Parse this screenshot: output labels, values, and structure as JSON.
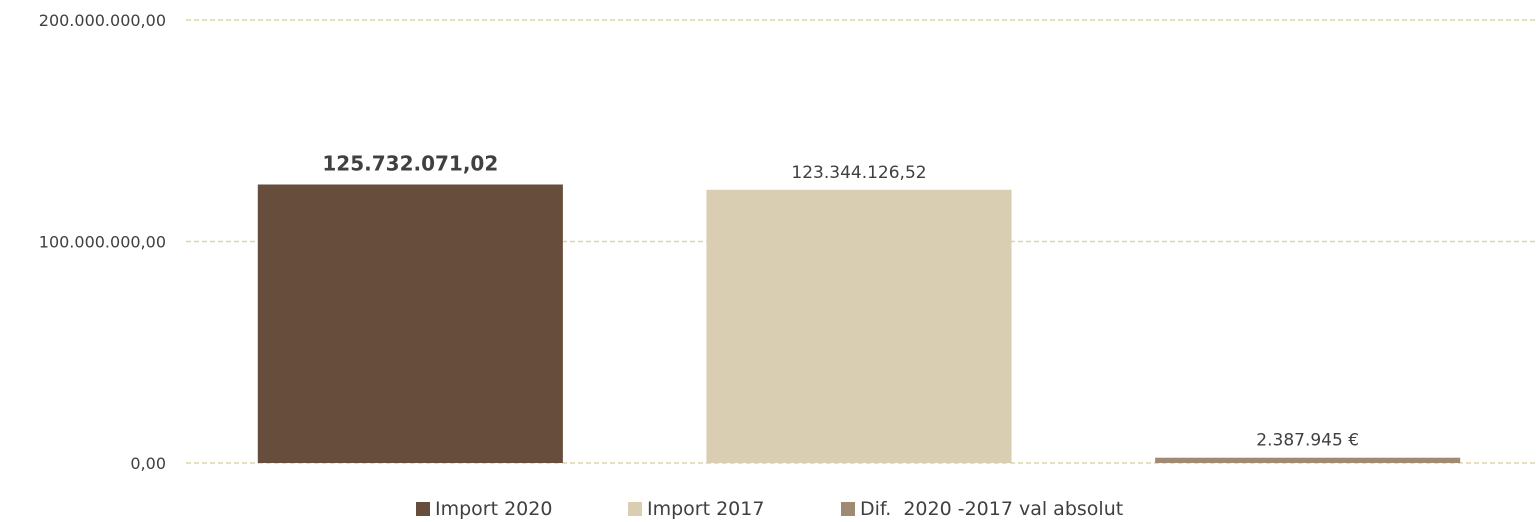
{
  "chart_data": {
    "type": "bar",
    "categories": [
      "Import 2020",
      "Import 2017",
      "Dif.  2020 -2017 val absolut"
    ],
    "values": [
      125732071.02,
      123344126.52,
      2387945
    ],
    "data_labels": [
      "125.732.071,02",
      "123.344.126,52",
      "2.387.945 €"
    ],
    "colors": [
      "#674E3C",
      "#D9CDB2",
      "#A08A74"
    ],
    "ylim": [
      0,
      200000000
    ],
    "yticks": [
      0,
      100000000,
      200000000
    ],
    "ytick_labels": [
      "0,00",
      "100.000.000,00",
      "200.000.000,00"
    ],
    "grid": true,
    "legend": {
      "position": "bottom",
      "items": [
        "Import 2020",
        "Import 2017",
        "Dif.  2020 -2017 val absolut"
      ]
    },
    "title": "",
    "xlabel": "",
    "ylabel": ""
  }
}
